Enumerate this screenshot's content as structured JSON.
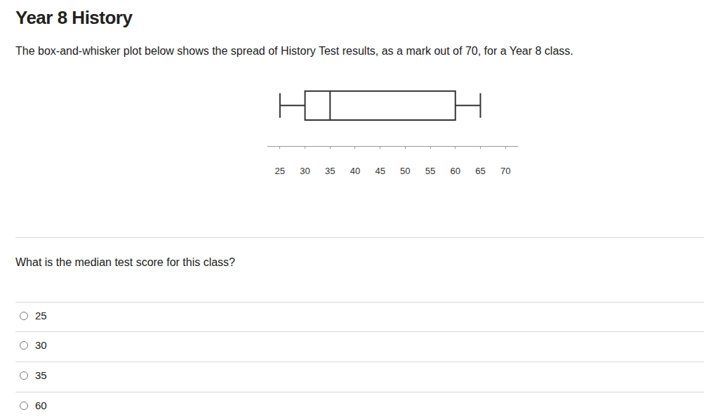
{
  "title": "Year 8 History",
  "description": "The box-and-whisker plot below shows the spread of History Test results, as a mark out of 70, for a Year 8 class.",
  "chart_data": {
    "type": "box",
    "orientation": "horizontal",
    "min": 25,
    "q1": 30,
    "median": 35,
    "q3": 60,
    "max": 65,
    "color": "#333333",
    "xlim": [
      22.5,
      72.5
    ],
    "xticks": [
      25,
      30,
      35,
      40,
      45,
      50,
      55,
      60,
      65,
      70
    ],
    "grid": false,
    "tick_labels": "x"
  },
  "question": "What is the median test score for this class?",
  "options": [
    "25",
    "30",
    "35",
    "60"
  ]
}
